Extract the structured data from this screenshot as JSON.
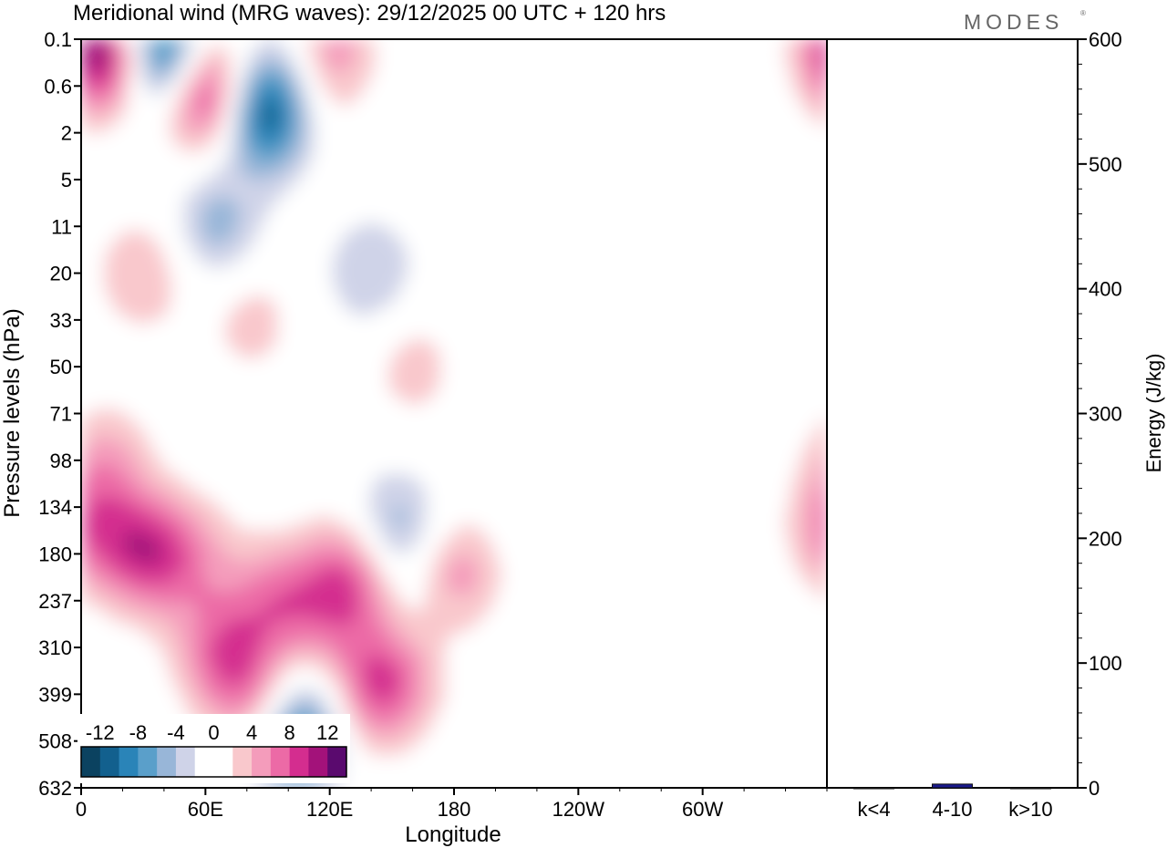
{
  "chart_data": [
    {
      "type": "heatmap",
      "title": "Meridional wind (MRG waves):  29/12/2025  00 UTC  + 120 hrs",
      "xlabel": "Longitude",
      "ylabel": "Pressure levels (hPa)",
      "x_ticks": [
        "0",
        "60E",
        "120E",
        "180",
        "120W",
        "60W"
      ],
      "x_tick_degrees": [
        0,
        60,
        120,
        180,
        240,
        300
      ],
      "xlim_degrees": [
        0,
        360
      ],
      "y_ticks": [
        "0.1",
        "0.6",
        "2",
        "5",
        "11",
        "20",
        "33",
        "50",
        "71",
        "98",
        "134",
        "180",
        "237",
        "310",
        "399",
        "508",
        "632"
      ],
      "colorbar": {
        "labels": [
          "-12",
          "-8",
          "-4",
          "0",
          "4",
          "8",
          "12"
        ],
        "levels": [
          -14,
          -12,
          -10,
          -8,
          -6,
          -4,
          -2,
          0,
          2,
          4,
          6,
          8,
          10,
          12,
          14
        ],
        "colors": [
          "#0b4260",
          "#12608e",
          "#2a84b8",
          "#5a9fca",
          "#98b6d8",
          "#cfd3e8",
          "#ffffff",
          "#ffffff",
          "#f9c8cc",
          "#f49cbb",
          "#ec6aa6",
          "#d42d8f",
          "#a3127a",
          "#5a0a6e"
        ]
      },
      "features": [
        {
          "lon": 12,
          "lev": 0.3,
          "value": 14
        },
        {
          "lon": 38,
          "lev": 0.3,
          "value": -14
        },
        {
          "lon": 60,
          "lev": 1.1,
          "value": 12
        },
        {
          "lon": 90,
          "lev": 1.5,
          "value": -14
        },
        {
          "lon": 108,
          "lev": 1.0,
          "value": 6
        },
        {
          "lon": 112,
          "lev": 0.4,
          "value": -11
        },
        {
          "lon": 117,
          "lev": 0.2,
          "value": 12
        },
        {
          "lon": 30,
          "lev": 5.0,
          "value": 4
        },
        {
          "lon": 65,
          "lev": 4.0,
          "value": -5
        },
        {
          "lon": 82,
          "lev": 6.0,
          "value": 3
        },
        {
          "lon": 140,
          "lev": 5.0,
          "value": -4
        },
        {
          "lon": 160,
          "lev": 7.0,
          "value": 3
        },
        {
          "lon": 12,
          "lev": 9.0,
          "value": 4
        },
        {
          "lon": 5,
          "lev": 10.5,
          "value": 6
        },
        {
          "lon": 33,
          "lev": 11.0,
          "value": 8
        },
        {
          "lon": 56,
          "lev": 11.0,
          "value": 3
        },
        {
          "lon": 67,
          "lev": 13.0,
          "value": 6
        },
        {
          "lon": 80,
          "lev": 14.0,
          "value": 4
        },
        {
          "lon": 96,
          "lev": 12.0,
          "value": 6
        },
        {
          "lon": 94,
          "lev": 14.5,
          "value": 4
        },
        {
          "lon": 102,
          "lev": 15.0,
          "value": -10
        },
        {
          "lon": 110,
          "lev": 14.0,
          "value": -4
        },
        {
          "lon": 118,
          "lev": 13.0,
          "value": 3
        },
        {
          "lon": 130,
          "lev": 11.5,
          "value": 8
        },
        {
          "lon": 140,
          "lev": 14.0,
          "value": 6
        },
        {
          "lon": 155,
          "lev": 13.5,
          "value": 4
        },
        {
          "lon": 152,
          "lev": 10.5,
          "value": -6
        },
        {
          "lon": 168,
          "lev": 12.0,
          "value": -3
        },
        {
          "lon": 178,
          "lev": 11.5,
          "value": 7
        }
      ]
    },
    {
      "type": "bar",
      "ylabel": "Energy (J/kg)",
      "categories": [
        "k<4",
        "4-10",
        "k>10"
      ],
      "values": [
        0,
        3,
        0
      ],
      "ylim": [
        0,
        600
      ],
      "y_ticks": [
        "0",
        "100",
        "200",
        "300",
        "400",
        "500",
        "600"
      ],
      "bar_colors": [
        "#1a1a8c",
        "#1a1a8c",
        "#1a1a8c"
      ]
    }
  ],
  "watermark": "MODES"
}
